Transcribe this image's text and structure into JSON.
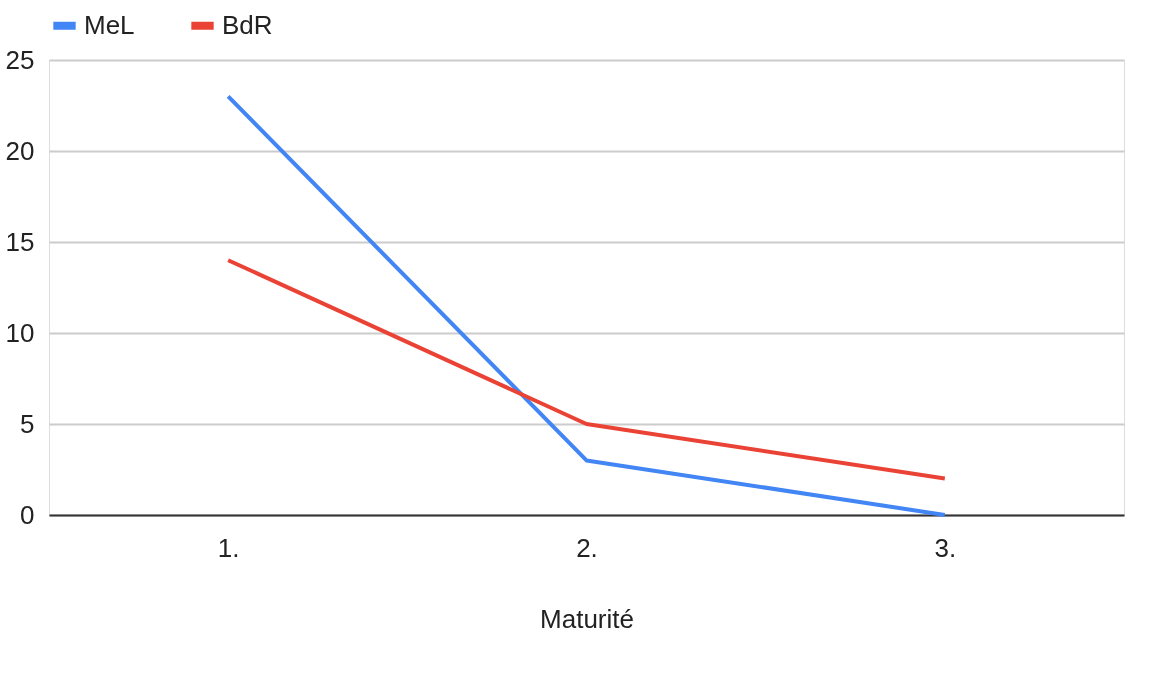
{
  "chart_data": {
    "type": "line",
    "xlabel": "Maturité",
    "categories": [
      "1.",
      "2.",
      "3."
    ],
    "series": [
      {
        "name": "MeL",
        "color": "#4285f4",
        "values": [
          23,
          3,
          0
        ]
      },
      {
        "name": "BdR",
        "color": "#ea4335",
        "values": [
          14,
          5,
          2
        ]
      }
    ],
    "ylim": [
      0,
      25
    ],
    "yticks": [
      0,
      5,
      10,
      15,
      20,
      25
    ],
    "grid": "y",
    "legend": "top"
  }
}
